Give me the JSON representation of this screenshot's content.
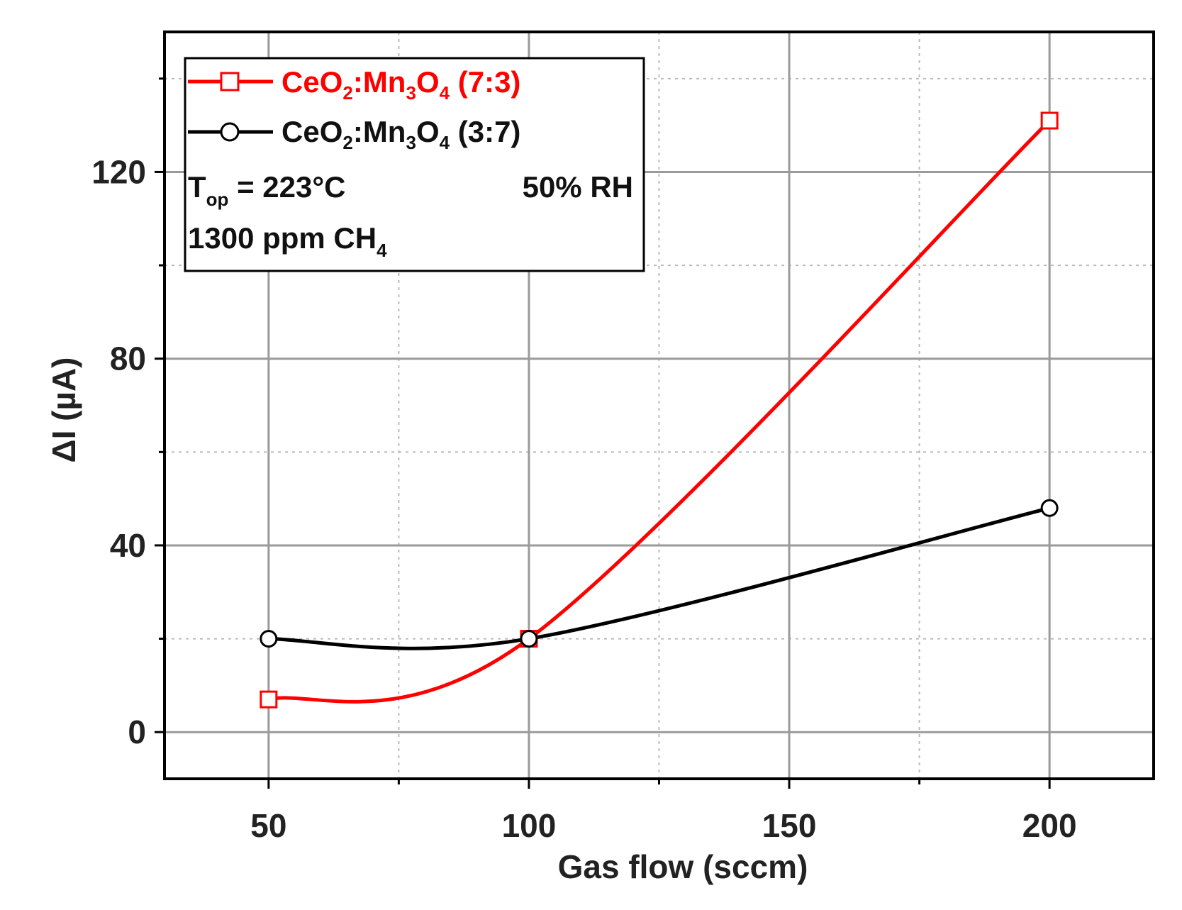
{
  "chart_data": {
    "type": "line",
    "xlabel": "Gas flow (sccm)",
    "ylabel": "ΔI (µA)",
    "xlim": [
      30,
      220
    ],
    "ylim": [
      -10,
      150
    ],
    "x_ticks": [
      "50",
      "100",
      "150",
      "200"
    ],
    "y_ticks": [
      "0",
      "40",
      "80",
      "120"
    ],
    "grid": true,
    "legend_position": "top-left",
    "series": [
      {
        "name": "CeO2:Mn3O4 (7:3)",
        "name_parts": {
          "a": "CeO",
          "a_sub": "2",
          "b": ":Mn",
          "b_sub": "3",
          "c": "O",
          "c_sub": "4",
          "d": " (7:3)"
        },
        "color": "#ff0000",
        "marker": "square",
        "x": [
          50,
          100,
          200
        ],
        "y": [
          7,
          20,
          131
        ]
      },
      {
        "name": "CeO2:Mn3O4 (3:7)",
        "name_parts": {
          "a": "CeO",
          "a_sub": "2",
          "b": ":Mn",
          "b_sub": "3",
          "c": "O",
          "c_sub": "4",
          "d": " (3:7)"
        },
        "color": "#000000",
        "marker": "circle",
        "x": [
          50,
          100,
          200
        ],
        "y": [
          20,
          20,
          48
        ]
      }
    ],
    "annotations": {
      "top_main": "T",
      "top_sub": "op",
      "top_rest": " = 223°C",
      "rh": "50%  RH",
      "conc_main": "1300 ppm CH",
      "conc_sub": "4"
    }
  }
}
